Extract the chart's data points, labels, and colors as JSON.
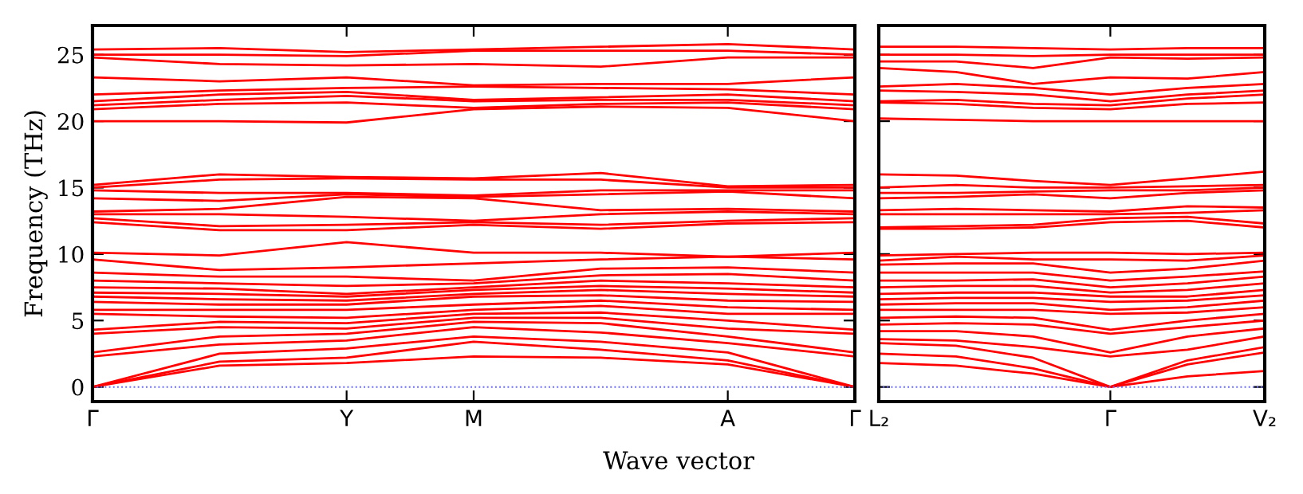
{
  "chart_data": [
    {
      "type": "line",
      "ylabel": "Frequency (THz)",
      "xlabel": "Wave vector",
      "ylim": [
        -1.1,
        27.2
      ],
      "yticks": [
        0,
        5,
        10,
        15,
        20,
        25
      ],
      "grid": false,
      "legend": false,
      "marker": "none",
      "line_style": "solid",
      "categories": [
        "Γ",
        null,
        "Y",
        "M",
        null,
        "A",
        "Γ"
      ],
      "ref_lines": [
        {
          "axis": "y",
          "value": 0,
          "label": null,
          "color": "#6a6aff",
          "line_style": "dotted"
        }
      ],
      "series": [
        {
          "color": "#ff0000",
          "values": [
            0,
            1.6,
            1.8,
            2.3,
            2.2,
            1.7,
            0
          ]
        },
        {
          "color": "#ff0000",
          "values": [
            0,
            1.9,
            2.2,
            3.4,
            2.8,
            2.0,
            0
          ]
        },
        {
          "color": "#ff0000",
          "values": [
            0,
            2.5,
            2.9,
            3.8,
            3.4,
            2.6,
            0
          ]
        },
        {
          "color": "#ff0000",
          "values": [
            2.3,
            3.2,
            3.5,
            4.5,
            4.1,
            3.3,
            2.3
          ]
        },
        {
          "color": "#ff0000",
          "values": [
            2.6,
            3.8,
            4.0,
            4.9,
            4.8,
            3.8,
            2.6
          ]
        },
        {
          "color": "#ff0000",
          "values": [
            4.0,
            4.5,
            4.4,
            5.2,
            5.2,
            4.4,
            4.0
          ]
        },
        {
          "color": "#ff0000",
          "values": [
            4.3,
            4.9,
            4.8,
            5.5,
            5.6,
            5.0,
            4.3
          ]
        },
        {
          "color": "#ff0000",
          "values": [
            5.5,
            5.3,
            5.2,
            5.8,
            6.1,
            5.5,
            5.5
          ]
        },
        {
          "color": "#ff0000",
          "values": [
            5.8,
            5.8,
            5.8,
            6.2,
            6.5,
            6.0,
            5.8
          ]
        },
        {
          "color": "#ff0000",
          "values": [
            6.4,
            6.2,
            6.2,
            6.8,
            6.9,
            6.5,
            6.4
          ]
        },
        {
          "color": "#ff0000",
          "values": [
            6.8,
            6.6,
            6.5,
            7.0,
            7.3,
            7.0,
            6.8
          ]
        },
        {
          "color": "#ff0000",
          "values": [
            7.1,
            7.0,
            6.8,
            7.3,
            7.6,
            7.4,
            7.1
          ]
        },
        {
          "color": "#ff0000",
          "values": [
            7.5,
            7.4,
            7.0,
            7.5,
            8.0,
            7.8,
            7.5
          ]
        },
        {
          "color": "#ff0000",
          "values": [
            8.0,
            7.8,
            7.6,
            7.8,
            8.4,
            8.5,
            8.0
          ]
        },
        {
          "color": "#ff0000",
          "values": [
            8.6,
            8.3,
            8.3,
            8.0,
            8.9,
            9.0,
            8.6
          ]
        },
        {
          "color": "#ff0000",
          "values": [
            9.6,
            8.8,
            9.0,
            9.3,
            9.6,
            9.8,
            9.6
          ]
        },
        {
          "color": "#ff0000",
          "values": [
            10.1,
            9.9,
            10.9,
            10.1,
            10.1,
            9.8,
            10.1
          ]
        },
        {
          "color": "#ff0000",
          "values": [
            12.4,
            11.8,
            11.8,
            12.2,
            11.9,
            12.3,
            12.4
          ]
        },
        {
          "color": "#ff0000",
          "values": [
            12.7,
            12.1,
            12.2,
            12.4,
            12.2,
            12.5,
            12.7
          ]
        },
        {
          "color": "#ff0000",
          "values": [
            13.0,
            13.0,
            12.8,
            12.5,
            13.0,
            13.2,
            13.0
          ]
        },
        {
          "color": "#ff0000",
          "values": [
            13.2,
            13.4,
            14.3,
            14.2,
            13.3,
            13.4,
            13.2
          ]
        },
        {
          "color": "#ff0000",
          "values": [
            14.2,
            14.0,
            14.5,
            14.3,
            14.5,
            14.7,
            14.2
          ]
        },
        {
          "color": "#ff0000",
          "values": [
            14.8,
            14.6,
            14.6,
            14.4,
            14.8,
            14.8,
            14.8
          ]
        },
        {
          "color": "#ff0000",
          "values": [
            15.0,
            15.6,
            15.7,
            15.6,
            15.6,
            15.0,
            15.0
          ]
        },
        {
          "color": "#ff0000",
          "values": [
            15.2,
            16.0,
            15.8,
            15.7,
            16.1,
            15.1,
            15.2
          ]
        },
        {
          "color": "#ff0000",
          "values": [
            20.0,
            20.0,
            19.9,
            20.9,
            21.1,
            21.0,
            20.0
          ]
        },
        {
          "color": "#ff0000",
          "values": [
            20.9,
            21.3,
            21.4,
            21.0,
            21.3,
            21.4,
            20.9
          ]
        },
        {
          "color": "#ff0000",
          "values": [
            21.2,
            21.6,
            21.9,
            21.5,
            21.6,
            21.6,
            21.2
          ]
        },
        {
          "color": "#ff0000",
          "values": [
            21.5,
            22.0,
            22.2,
            21.6,
            21.8,
            22.0,
            21.5
          ]
        },
        {
          "color": "#ff0000",
          "values": [
            22.0,
            22.3,
            22.5,
            22.6,
            22.5,
            22.4,
            22.0
          ]
        },
        {
          "color": "#ff0000",
          "values": [
            23.3,
            23.0,
            23.3,
            22.7,
            22.8,
            22.8,
            23.3
          ]
        },
        {
          "color": "#ff0000",
          "values": [
            24.8,
            24.3,
            24.2,
            24.3,
            24.1,
            24.8,
            24.8
          ]
        },
        {
          "color": "#ff0000",
          "values": [
            25.0,
            25.0,
            24.9,
            25.3,
            25.3,
            25.3,
            25.0
          ]
        },
        {
          "color": "#ff0000",
          "values": [
            25.4,
            25.5,
            25.2,
            25.4,
            25.6,
            25.8,
            25.4
          ]
        }
      ]
    },
    {
      "type": "line",
      "ylim": [
        -1.1,
        27.2
      ],
      "yticks": [
        0,
        5,
        10,
        15,
        20,
        25
      ],
      "tick_labels": "x",
      "grid": false,
      "legend": false,
      "marker": "none",
      "line_style": "solid",
      "categories": [
        "L₂",
        null,
        null,
        "Γ",
        null,
        "V₂"
      ],
      "ref_lines": [
        {
          "axis": "y",
          "value": 0,
          "label": null,
          "color": "#6a6aff",
          "line_style": "dotted"
        }
      ],
      "series": [
        {
          "color": "#ff0000",
          "values": [
            1.8,
            1.6,
            1.0,
            0,
            0.8,
            1.2
          ]
        },
        {
          "color": "#ff0000",
          "values": [
            2.5,
            2.3,
            1.4,
            0,
            1.7,
            2.6
          ]
        },
        {
          "color": "#ff0000",
          "values": [
            3.3,
            3.1,
            2.2,
            0,
            2.0,
            3.0
          ]
        },
        {
          "color": "#ff0000",
          "values": [
            3.6,
            3.5,
            3.0,
            2.3,
            2.8,
            3.8
          ]
        },
        {
          "color": "#ff0000",
          "values": [
            4.2,
            4.2,
            3.8,
            2.6,
            3.8,
            4.4
          ]
        },
        {
          "color": "#ff0000",
          "values": [
            4.7,
            4.8,
            4.7,
            4.0,
            4.5,
            5.0
          ]
        },
        {
          "color": "#ff0000",
          "values": [
            5.2,
            5.3,
            5.2,
            4.3,
            5.0,
            5.5
          ]
        },
        {
          "color": "#ff0000",
          "values": [
            5.8,
            5.8,
            5.8,
            5.5,
            5.6,
            6.0
          ]
        },
        {
          "color": "#ff0000",
          "values": [
            6.2,
            6.3,
            6.3,
            5.8,
            6.0,
            6.5
          ]
        },
        {
          "color": "#ff0000",
          "values": [
            6.6,
            6.7,
            6.7,
            6.4,
            6.5,
            6.9
          ]
        },
        {
          "color": "#ff0000",
          "values": [
            7.0,
            7.1,
            7.1,
            6.8,
            6.8,
            7.3
          ]
        },
        {
          "color": "#ff0000",
          "values": [
            7.5,
            7.6,
            7.6,
            7.1,
            7.3,
            7.8
          ]
        },
        {
          "color": "#ff0000",
          "values": [
            8.0,
            8.0,
            8.1,
            7.5,
            7.8,
            8.3
          ]
        },
        {
          "color": "#ff0000",
          "values": [
            8.6,
            8.6,
            8.6,
            8.0,
            8.3,
            8.7
          ]
        },
        {
          "color": "#ff0000",
          "values": [
            9.2,
            9.3,
            9.3,
            8.6,
            8.9,
            9.5
          ]
        },
        {
          "color": "#ff0000",
          "values": [
            9.5,
            9.8,
            9.6,
            9.6,
            9.5,
            9.9
          ]
        },
        {
          "color": "#ff0000",
          "values": [
            9.9,
            10.0,
            10.1,
            10.1,
            10.0,
            10.1
          ]
        },
        {
          "color": "#ff0000",
          "values": [
            11.9,
            11.9,
            12.0,
            12.4,
            12.5,
            12.0
          ]
        },
        {
          "color": "#ff0000",
          "values": [
            12.0,
            12.1,
            12.2,
            12.7,
            12.8,
            12.3
          ]
        },
        {
          "color": "#ff0000",
          "values": [
            13.0,
            13.0,
            13.0,
            13.0,
            13.1,
            13.3
          ]
        },
        {
          "color": "#ff0000",
          "values": [
            13.3,
            13.4,
            13.3,
            13.2,
            13.6,
            13.5
          ]
        },
        {
          "color": "#ff0000",
          "values": [
            14.2,
            14.3,
            14.5,
            14.2,
            14.6,
            14.8
          ]
        },
        {
          "color": "#ff0000",
          "values": [
            14.6,
            14.6,
            14.7,
            14.8,
            14.8,
            15.0
          ]
        },
        {
          "color": "#ff0000",
          "values": [
            15.0,
            15.2,
            15.0,
            15.0,
            15.1,
            15.2
          ]
        },
        {
          "color": "#ff0000",
          "values": [
            16.0,
            15.9,
            15.5,
            15.2,
            15.7,
            16.2
          ]
        },
        {
          "color": "#ff0000",
          "values": [
            20.2,
            20.1,
            20.0,
            20.0,
            20.0,
            20.0
          ]
        },
        {
          "color": "#ff0000",
          "values": [
            21.4,
            21.3,
            21.0,
            20.9,
            21.3,
            21.4
          ]
        },
        {
          "color": "#ff0000",
          "values": [
            21.5,
            21.6,
            21.3,
            21.2,
            21.7,
            22.0
          ]
        },
        {
          "color": "#ff0000",
          "values": [
            22.3,
            22.2,
            22.0,
            21.5,
            22.0,
            22.3
          ]
        },
        {
          "color": "#ff0000",
          "values": [
            22.6,
            22.8,
            22.5,
            22.0,
            22.5,
            22.8
          ]
        },
        {
          "color": "#ff0000",
          "values": [
            24.0,
            23.7,
            22.8,
            23.3,
            23.2,
            23.7
          ]
        },
        {
          "color": "#ff0000",
          "values": [
            24.5,
            24.5,
            24.0,
            24.8,
            24.7,
            24.8
          ]
        },
        {
          "color": "#ff0000",
          "values": [
            25.0,
            25.0,
            24.9,
            25.0,
            25.0,
            25.0
          ]
        },
        {
          "color": "#ff0000",
          "values": [
            25.6,
            25.6,
            25.5,
            25.4,
            25.5,
            25.5
          ]
        }
      ]
    }
  ]
}
